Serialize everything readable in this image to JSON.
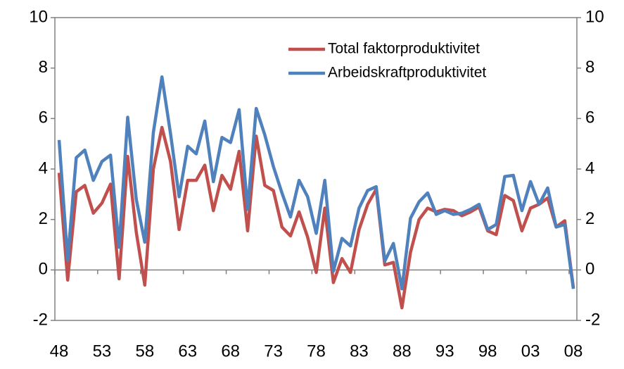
{
  "chart_data": {
    "type": "line",
    "categories": [
      "48",
      null,
      null,
      null,
      null,
      "53",
      null,
      null,
      null,
      null,
      "58",
      null,
      null,
      null,
      null,
      "63",
      null,
      null,
      null,
      null,
      "68",
      null,
      null,
      null,
      null,
      "73",
      null,
      null,
      null,
      null,
      "78",
      null,
      null,
      null,
      null,
      "83",
      null,
      null,
      null,
      null,
      "88",
      null,
      null,
      null,
      null,
      "93",
      null,
      null,
      null,
      null,
      "98",
      null,
      null,
      null,
      null,
      "03",
      null,
      null,
      null,
      null,
      "08"
    ],
    "series": [
      {
        "name": "Total faktorproduktivitet",
        "color": "#c0504d",
        "values": [
          3.85,
          -0.4,
          3.1,
          3.35,
          2.25,
          2.65,
          3.4,
          -0.35,
          4.5,
          1.5,
          -0.6,
          4.0,
          5.65,
          4.3,
          1.6,
          3.55,
          3.55,
          4.15,
          2.35,
          3.75,
          3.2,
          4.7,
          1.55,
          5.3,
          3.35,
          3.15,
          1.7,
          1.35,
          2.3,
          1.3,
          -0.1,
          2.45,
          -0.5,
          0.45,
          -0.1,
          1.6,
          2.6,
          3.2,
          0.2,
          0.3,
          -1.5,
          0.7,
          2.0,
          2.45,
          2.3,
          2.4,
          2.35,
          2.15,
          2.3,
          2.5,
          1.55,
          1.4,
          2.95,
          2.75,
          1.55,
          2.45,
          2.6,
          2.85,
          1.7,
          1.95,
          -0.7
        ]
      },
      {
        "name": "Arbeidskraftproduktivitet",
        "color": "#4f81bd",
        "values": [
          5.15,
          0.4,
          4.45,
          4.75,
          3.55,
          4.3,
          4.55,
          0.9,
          6.05,
          2.8,
          1.1,
          5.45,
          7.65,
          5.4,
          2.9,
          4.9,
          4.6,
          5.9,
          3.5,
          5.25,
          5.05,
          6.35,
          2.4,
          6.4,
          5.35,
          4.1,
          3.05,
          2.1,
          3.55,
          2.9,
          1.45,
          3.55,
          -0.05,
          1.25,
          0.95,
          2.45,
          3.15,
          3.3,
          0.35,
          1.05,
          -0.75,
          2.05,
          2.7,
          3.05,
          2.2,
          2.35,
          2.2,
          2.25,
          2.4,
          2.6,
          1.6,
          1.8,
          3.7,
          3.75,
          2.35,
          3.5,
          2.6,
          3.25,
          1.7,
          1.8,
          -0.75
        ]
      }
    ],
    "ylim": [
      -2,
      10
    ],
    "yticks": [
      -2,
      0,
      2,
      4,
      6,
      8,
      10
    ],
    "y2lim": [
      -2,
      10
    ],
    "y2ticks": [
      -2,
      0,
      2,
      4,
      6,
      8,
      10
    ],
    "legend": "upper right"
  }
}
